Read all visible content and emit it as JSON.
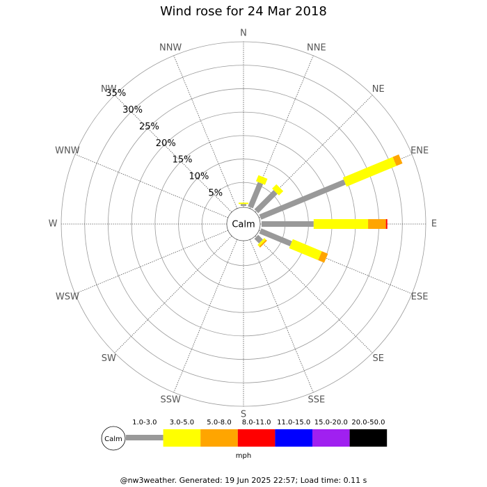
{
  "chart_data": {
    "type": "rose",
    "title": "Wind rose for 24 Mar 2018",
    "categories": [
      "N",
      "NNE",
      "NE",
      "ENE",
      "E",
      "ESE",
      "SE",
      "SSE",
      "S",
      "SSW",
      "SW",
      "WSW",
      "W",
      "WNW",
      "NW",
      "NNW"
    ],
    "series": [
      {
        "name": "1.0-3.0",
        "color": "#999999",
        "values": [
          0.4,
          5.6,
          5.8,
          19.5,
          11.1,
          7.1,
          1.4,
          0,
          0,
          0,
          0,
          0,
          0,
          0,
          0,
          0
        ]
      },
      {
        "name": "3.0-5.0",
        "color": "#ffff00",
        "values": [
          0.3,
          1.4,
          1.3,
          11.5,
          11.6,
          6.7,
          0.5,
          0,
          0,
          0,
          0,
          0,
          0,
          0,
          0,
          0
        ]
      },
      {
        "name": "5.0-8.0",
        "color": "#ffa500",
        "values": [
          0,
          0,
          0,
          1.4,
          3.8,
          1.4,
          0.3,
          0,
          0,
          0,
          0,
          0,
          0,
          0,
          0,
          0
        ]
      },
      {
        "name": "8.0-11.0",
        "color": "#ff0000",
        "values": [
          0,
          0,
          0,
          0,
          0.3,
          0,
          0,
          0,
          0,
          0,
          0,
          0,
          0,
          0,
          0,
          0
        ]
      },
      {
        "name": "11.0-15.0",
        "color": "#0000ff",
        "values": [
          0,
          0,
          0,
          0,
          0,
          0,
          0,
          0,
          0,
          0,
          0,
          0,
          0,
          0,
          0,
          0
        ]
      },
      {
        "name": "15.0-20.0",
        "color": "#a020f0",
        "values": [
          0,
          0,
          0,
          0,
          0,
          0,
          0,
          0,
          0,
          0,
          0,
          0,
          0,
          0,
          0,
          0
        ]
      },
      {
        "name": "20.0-50.0",
        "color": "#000000",
        "values": [
          0,
          0,
          0,
          0,
          0,
          0,
          0,
          0,
          0,
          0,
          0,
          0,
          0,
          0,
          0,
          0
        ]
      }
    ],
    "ylim": [
      0,
      35
    ],
    "yticks": [
      {
        "value": 5,
        "label": "5%"
      },
      {
        "value": 10,
        "label": "10%"
      },
      {
        "value": 15,
        "label": "15%"
      },
      {
        "value": 20,
        "label": "20%"
      },
      {
        "value": 25,
        "label": "25%"
      },
      {
        "value": 30,
        "label": "30%"
      },
      {
        "value": 35,
        "label": "35%"
      }
    ],
    "calm_label": "Calm",
    "unit": "mph",
    "footer": "@nw3weather. Generated: 19 Jun 2025 22:57; Load time: 0.11 s"
  }
}
